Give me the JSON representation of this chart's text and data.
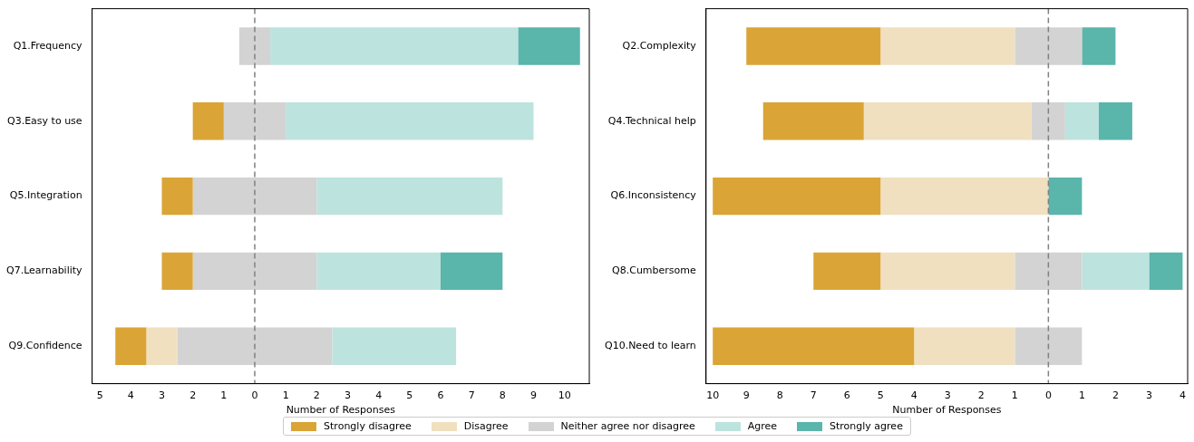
{
  "chart_data": [
    {
      "type": "bar",
      "orientation": "horizontal",
      "xlabel": "Number of Responses",
      "categories": [
        "Q1.Frequency",
        "Q3.Easy to use",
        "Q5.Integration",
        "Q7.Learnability",
        "Q9.Confidence"
      ],
      "series": [
        {
          "name": "Strongly disagree",
          "color": "#daa536",
          "base": [
            null,
            -2,
            -3,
            -3,
            -4.5
          ],
          "values": [
            null,
            1,
            1,
            1,
            1
          ]
        },
        {
          "name": "Disagree",
          "color": "#f0e0c0",
          "base": [
            null,
            null,
            null,
            null,
            -3.5
          ],
          "values": [
            null,
            null,
            null,
            null,
            1
          ]
        },
        {
          "name": "Neither agree nor disagree",
          "color": "#d3d3d3",
          "base": [
            -0.5,
            -1,
            -2,
            -2,
            -2.5
          ],
          "values": [
            1,
            2,
            4,
            4,
            5
          ]
        },
        {
          "name": "Agree",
          "color": "#bde3de",
          "base": [
            0.5,
            1,
            2,
            2,
            2.5
          ],
          "values": [
            8,
            8,
            6,
            4,
            4
          ]
        },
        {
          "name": "Strongly agree",
          "color": "#5ab5ab",
          "base": [
            8.5,
            null,
            null,
            6,
            null
          ],
          "values": [
            2,
            null,
            null,
            2,
            null
          ]
        }
      ],
      "xlim": [
        -5.25,
        10.8
      ],
      "xticks": [
        {
          "value": -5,
          "label": "5"
        },
        {
          "value": -4,
          "label": "4"
        },
        {
          "value": -3,
          "label": "3"
        },
        {
          "value": -2,
          "label": "2"
        },
        {
          "value": -1,
          "label": "1"
        },
        0,
        1,
        2,
        3,
        4,
        5,
        6,
        7,
        8,
        9,
        10
      ],
      "ref_lines": [
        {
          "axis": "x",
          "value": 0,
          "color": "#808080",
          "line_style": "dashed"
        }
      ],
      "grid": false,
      "legend": "bottom"
    },
    {
      "type": "bar",
      "orientation": "horizontal",
      "xlabel": "Number of Responses",
      "categories": [
        "Q2.Complexity",
        "Q4.Technical help",
        "Q6.Inconsistency",
        "Q8.Cumbersome",
        "Q10.Need to learn"
      ],
      "series": [
        {
          "color": "#daa536",
          "base": [
            -9,
            -8.5,
            -10,
            -7,
            -10
          ],
          "values": [
            4,
            3,
            5,
            2,
            6
          ]
        },
        {
          "color": "#f0e0c0",
          "base": [
            -5,
            -5.5,
            -5,
            -5,
            -4
          ],
          "values": [
            4,
            5,
            5,
            4,
            3
          ]
        },
        {
          "color": "#d3d3d3",
          "base": [
            -1,
            -0.5,
            null,
            -1,
            -1
          ],
          "values": [
            2,
            1,
            null,
            2,
            2
          ]
        },
        {
          "color": "#bde3de",
          "base": [
            null,
            0.5,
            null,
            1,
            null
          ],
          "values": [
            null,
            1,
            null,
            2,
            null
          ]
        },
        {
          "color": "#5ab5ab",
          "base": [
            1,
            1.5,
            0,
            3,
            null
          ],
          "values": [
            1,
            1,
            1,
            1,
            null
          ]
        }
      ],
      "xlim": [
        -10.2,
        4.15
      ],
      "xticks": [
        {
          "value": -10,
          "label": "10"
        },
        {
          "value": -9,
          "label": "9"
        },
        {
          "value": -8,
          "label": "8"
        },
        {
          "value": -7,
          "label": "7"
        },
        {
          "value": -6,
          "label": "6"
        },
        {
          "value": -5,
          "label": "5"
        },
        {
          "value": -4,
          "label": "4"
        },
        {
          "value": -3,
          "label": "3"
        },
        {
          "value": -2,
          "label": "2"
        },
        {
          "value": -1,
          "label": "1"
        },
        0,
        1,
        2,
        3,
        4
      ],
      "ref_lines": [
        {
          "axis": "x",
          "value": 0,
          "color": "#808080",
          "line_style": "dashed"
        }
      ],
      "grid": false
    }
  ]
}
